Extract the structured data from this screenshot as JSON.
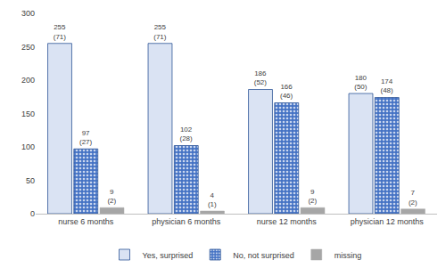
{
  "chart_data": {
    "type": "bar",
    "categories": [
      "nurse 6 months",
      "physician 6 months",
      "nurse 12 months",
      "physician 12 months"
    ],
    "series": [
      {
        "name": "Yes, surprised",
        "color": "#dae3f3",
        "values": [
          255,
          255,
          186,
          180
        ],
        "value_labels": [
          "255\n(71)",
          "255\n(71)",
          "186\n(52)",
          "180\n(50)"
        ]
      },
      {
        "name": "No, not surprised",
        "color": "#4472c4",
        "marker": "dots",
        "values": [
          97,
          102,
          166,
          174
        ],
        "value_labels": [
          "97\n(27)",
          "102\n(28)",
          "166\n(46)",
          "174\n(48)"
        ]
      },
      {
        "name": "missing",
        "color": "#a6a6a6",
        "values": [
          9,
          4,
          9,
          7
        ],
        "value_labels": [
          "9\n(2)",
          "4\n(1)",
          "9\n(2)",
          "7\n(2)"
        ]
      }
    ],
    "ylim": [
      0,
      300
    ],
    "yticks": [
      0,
      50,
      100,
      150,
      200,
      250,
      300
    ],
    "grid": false,
    "legend": "bottom",
    "data_labels": true
  }
}
